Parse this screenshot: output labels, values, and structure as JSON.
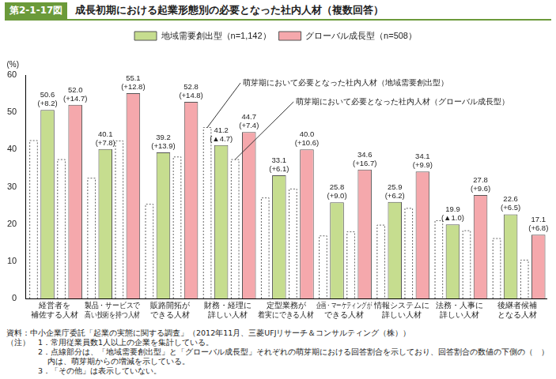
{
  "chart_data": {
    "type": "bar",
    "figure_label": "第2-1-17図",
    "title": "成長初期における起業形態別の必要となった社内人材（複数回答）",
    "y_label": "(%)",
    "categories": [
      "経営者を\n補佐する人材",
      "製品・サービスで\n高い技術を持つ人材",
      "販路開拓が\nできる人材",
      "財務・経理に\n詳しい人材",
      "定型業務が\n着実にできる人材",
      "企画・マーケティングが\nできる人材",
      "情報システムに\n詳しい人材",
      "法務・人事に\n詳しい人材",
      "後継者候補\nとなる人材"
    ],
    "series": [
      {
        "name": "萌芽期において必要となった社内人材（地域需要創出型）",
        "color": "#666666",
        "line_style": "dotted",
        "values": [
          42.4,
          32.3,
          25.3,
          45.9,
          27.0,
          16.8,
          19.7,
          20.9,
          16.1
        ]
      },
      {
        "name": "地域需要創出型（n=1,142）",
        "color": "#c6dd8f",
        "values": [
          50.6,
          40.1,
          39.2,
          41.2,
          33.1,
          25.8,
          25.9,
          19.9,
          22.6
        ],
        "value_labels": [
          "50.6\n(+8.2)",
          "40.1\n(+7.8)",
          "39.2\n(+13.9)",
          "41.2\n(▲4.7)",
          "33.1\n(+6.1)",
          "25.8\n(+9.0)",
          "25.9\n(+6.2)",
          "19.9\n(▲1.0)",
          "22.6\n(+6.5)"
        ]
      },
      {
        "name": "萌芽期において必要となった社内人材（グローバル成長型）",
        "color": "#666666",
        "line_style": "dotted",
        "values": [
          37.3,
          42.3,
          38.0,
          37.3,
          29.4,
          17.9,
          24.2,
          18.2,
          10.3
        ]
      },
      {
        "name": "グローバル成長型（n=508）",
        "color": "#f5a8ac",
        "values": [
          52.0,
          55.1,
          52.8,
          44.7,
          40.0,
          34.6,
          34.1,
          27.8,
          17.1
        ],
        "value_labels": [
          "52.0\n(+14.7)",
          "55.1\n(+12.8)",
          "52.8\n(+14.8)",
          "44.7\n(+7.4)",
          "40.0\n(+10.6)",
          "34.6\n(+16.7)",
          "34.1\n(+9.9)",
          "27.8\n(+9.6)",
          "17.1\n(+6.8)"
        ]
      }
    ],
    "annotations": [
      {
        "series": "萌芽期において必要となった社内人材（地域需要創出型）",
        "category": "財務・経理に\n詳しい人材"
      },
      {
        "series": "萌芽期において必要となった社内人材（グローバル成長型）",
        "category": "財務・経理に\n詳しい人材"
      }
    ],
    "ylim": [
      0,
      60
    ],
    "yticks": [
      0,
      10,
      20,
      30,
      40,
      50,
      60
    ],
    "grid": false,
    "legend": "top",
    "data_labels": true,
    "source": "資料：中小企業庁委託「起業の実態に関する調査」（2012年11月、三菱UFJリサーチ＆コンサルティング（株））",
    "notes_label": "（注）",
    "notes": [
      "1．常用従業員数1人以上の企業を集計している。",
      "2．点線部分は、「地域需要創出型」と「グローバル成長型」それぞれの萌芽期における回答割合を示しており、回答割合の数値の下側の（　）内は、萌芽期からの増減を示している。",
      "3．「その他」は表示していない。"
    ]
  }
}
